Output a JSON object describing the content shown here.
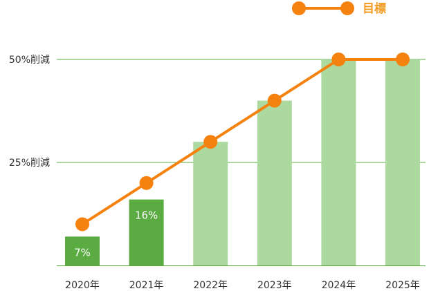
{
  "chart_data": {
    "type": "bar",
    "categories": [
      "2020年",
      "2021年",
      "2022年",
      "2023年",
      "2024年",
      "2025年"
    ],
    "series": [
      {
        "values": [
          7,
          16,
          30,
          40,
          50,
          50
        ],
        "data_labels": [
          "7%",
          "16%",
          "",
          "",
          "",
          ""
        ],
        "colors": [
          "#5aab41",
          "#5aab41",
          "#acd9a0",
          "#acd9a0",
          "#acd9a0",
          "#acd9a0"
        ]
      },
      {
        "name": "目標",
        "type": "line",
        "values": [
          10,
          20,
          30,
          40,
          50,
          50
        ],
        "color": "#f5820f"
      }
    ],
    "y_ticks": [
      {
        "value": 25,
        "label": "25%削減"
      },
      {
        "value": 50,
        "label": "50%削減"
      }
    ],
    "ylim": [
      0,
      50
    ],
    "grid": true,
    "legend": "top-right"
  }
}
